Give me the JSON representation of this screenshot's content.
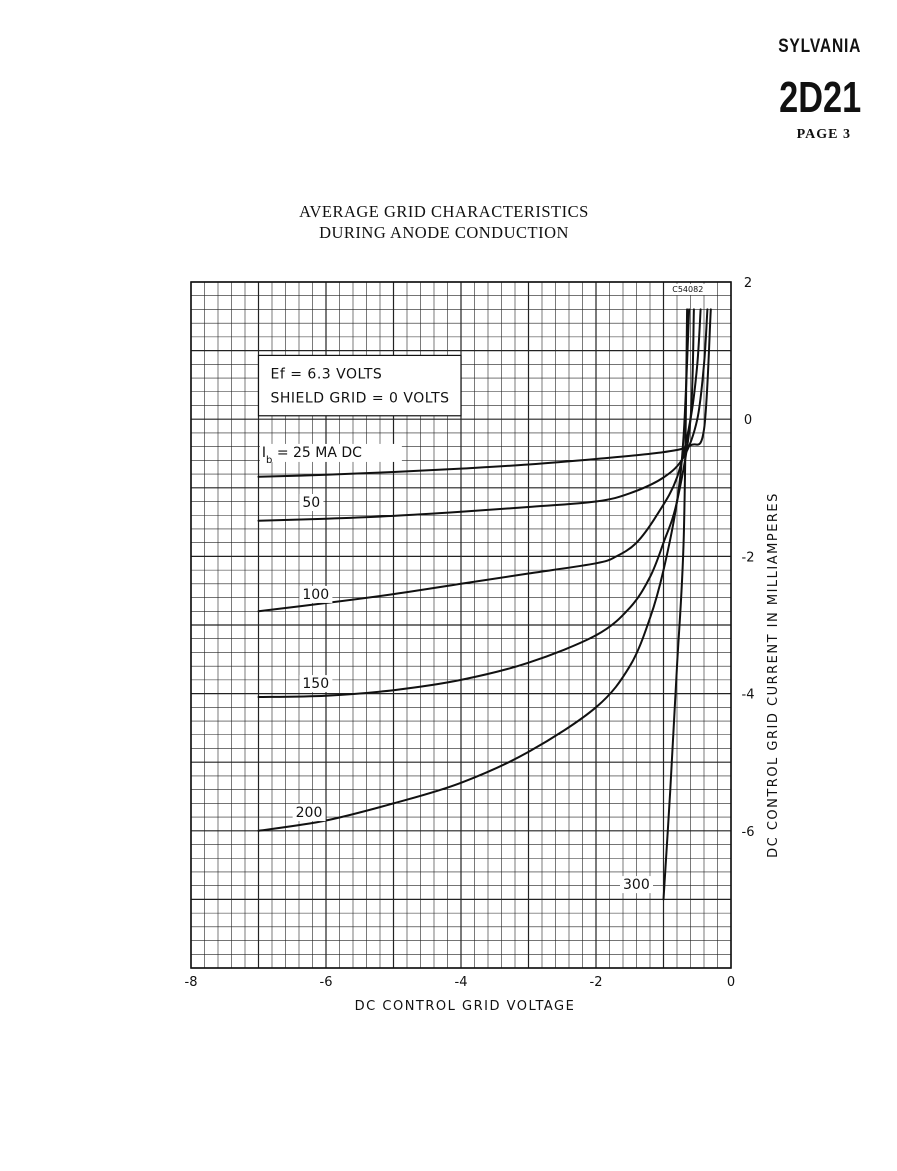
{
  "header": {
    "brand": "SYLVANIA",
    "model": "2D21",
    "page": "PAGE 3"
  },
  "chart_data": {
    "type": "line",
    "title_line1": "AVERAGE GRID CHARACTERISTICS",
    "title_line2": "DURING ANODE CONDUCTION",
    "xlabel": "DC CONTROL GRID VOLTAGE",
    "ylabel": "DC CONTROL GRID CURRENT IN MILLIAMPERES",
    "xlim": [
      -8,
      0
    ],
    "ylim": [
      -8,
      2
    ],
    "xticks": [
      -8,
      -6,
      -4,
      -2,
      0
    ],
    "xtick_labels": [
      "-8",
      "-6",
      "-4",
      "-2",
      "0"
    ],
    "yticks": [
      2,
      0,
      -2,
      -4,
      -6
    ],
    "ytick_labels": [
      "2",
      "0",
      "-2",
      "-4",
      "-6"
    ],
    "grid": true,
    "drawing_code": "C54082",
    "conditions": {
      "line1": "Ef = 6.3 VOLTS",
      "line2": "SHIELD GRID = 0 VOLTS"
    },
    "series": [
      {
        "name": "Ib = 25 MA DC",
        "label": "25 MA DC",
        "x": [
          -7,
          -6,
          -5,
          -4,
          -3,
          -2,
          -1,
          -0.6,
          -0.4,
          -0.3
        ],
        "y": [
          -0.84,
          -0.81,
          -0.77,
          -0.72,
          -0.66,
          -0.58,
          -0.48,
          -0.38,
          -0.15,
          1.6
        ]
      },
      {
        "name": "50",
        "label": "50",
        "x": [
          -7,
          -6,
          -5,
          -4,
          -3,
          -2,
          -1.5,
          -1,
          -0.7,
          -0.5,
          -0.4,
          -0.35
        ],
        "y": [
          -1.48,
          -1.45,
          -1.41,
          -1.35,
          -1.28,
          -1.2,
          -1.08,
          -0.85,
          -0.55,
          0.0,
          0.8,
          1.6
        ]
      },
      {
        "name": "100",
        "label": "100",
        "x": [
          -7,
          -6,
          -5,
          -4,
          -3,
          -2,
          -1.7,
          -1.4,
          -1.1,
          -0.8,
          -0.6,
          -0.5,
          -0.45
        ],
        "y": [
          -2.8,
          -2.68,
          -2.55,
          -2.4,
          -2.25,
          -2.1,
          -2.0,
          -1.8,
          -1.4,
          -0.85,
          0.0,
          0.8,
          1.6
        ]
      },
      {
        "name": "150",
        "label": "150",
        "x": [
          -7,
          -6,
          -5,
          -4,
          -3,
          -2,
          -1.5,
          -1.2,
          -1,
          -0.8,
          -0.6,
          -0.55
        ],
        "y": [
          -4.05,
          -4.03,
          -3.95,
          -3.8,
          -3.55,
          -3.15,
          -2.75,
          -2.3,
          -1.8,
          -1.2,
          0.0,
          1.6
        ]
      },
      {
        "name": "200",
        "label": "200",
        "x": [
          -7,
          -6,
          -5,
          -4,
          -3,
          -2,
          -1.5,
          -1.2,
          -1,
          -0.8,
          -0.7,
          -0.62
        ],
        "y": [
          -6.0,
          -5.85,
          -5.6,
          -5.3,
          -4.85,
          -4.2,
          -3.6,
          -2.9,
          -2.2,
          -1.2,
          -0.2,
          1.6
        ]
      },
      {
        "name": "300",
        "label": "300",
        "x": [
          -1.0,
          -0.9,
          -0.8,
          -0.7,
          -0.65
        ],
        "y": [
          -7.0,
          -5.4,
          -3.6,
          -1.7,
          1.6
        ]
      }
    ]
  }
}
